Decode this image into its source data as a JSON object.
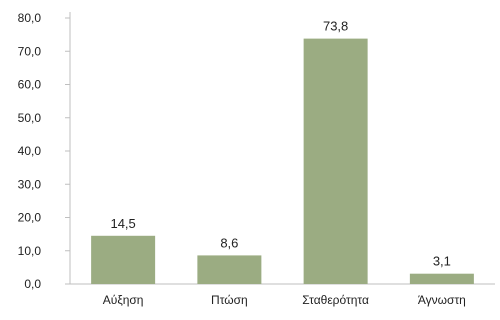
{
  "chart_data": {
    "type": "bar",
    "title": "",
    "categories": [
      "Αύξηση",
      "Πτώση",
      "Σταθερότητα",
      "Άγνωστη"
    ],
    "values": [
      14.5,
      8.6,
      73.8,
      3.1
    ],
    "value_labels": [
      "14,5",
      "8,6",
      "73,8",
      "3,1"
    ],
    "y_ticks": [
      "0,0",
      "10,0",
      "20,0",
      "30,0",
      "40,0",
      "50,0",
      "60,0",
      "70,0",
      "80,0"
    ],
    "ylim": [
      0,
      80
    ],
    "xlabel": "",
    "ylabel": "",
    "grid": false,
    "legend": "none",
    "bar_color": "#9bac82",
    "axis_color": "#bfbfbf"
  }
}
